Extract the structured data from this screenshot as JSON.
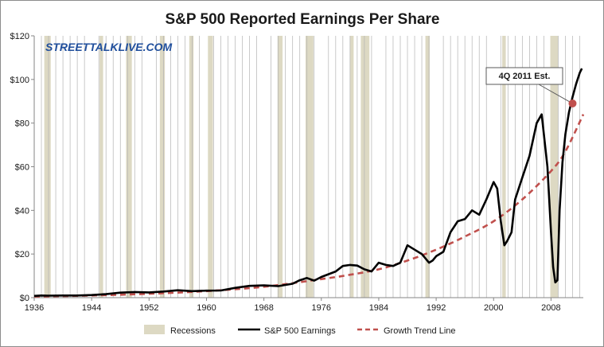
{
  "chart_data": {
    "type": "line",
    "title": "S&P 500 Reported Earnings Per Share",
    "watermark": "STREETTALKLIVE.COM",
    "xlim": [
      1936,
      2012.5
    ],
    "ylim": [
      0,
      120
    ],
    "x_ticks": [
      1936,
      1944,
      1952,
      1960,
      1968,
      1976,
      1984,
      1992,
      2000,
      2008
    ],
    "x_tick_labels": [
      "1936",
      "1944",
      "1952",
      "1960",
      "1968",
      "1976",
      "1984",
      "1992",
      "2000",
      "2008"
    ],
    "y_ticks": [
      0,
      20,
      40,
      60,
      80,
      100,
      120
    ],
    "y_tick_labels": [
      "$0",
      "$20",
      "$40",
      "$60",
      "$80",
      "$100",
      "$120"
    ],
    "grid": "vertical",
    "legend_position": "bottom",
    "recessions": [
      [
        1937.4,
        1938.3
      ],
      [
        1945.1,
        1945.6
      ],
      [
        1948.8,
        1949.6
      ],
      [
        1953.5,
        1954.2
      ],
      [
        1957.6,
        1958.2
      ],
      [
        1960.2,
        1960.9
      ],
      [
        1969.9,
        1970.6
      ],
      [
        1973.8,
        1974.9
      ],
      [
        1980.0,
        1980.5
      ],
      [
        1981.5,
        1982.7
      ],
      [
        1990.5,
        1991.1
      ],
      [
        2001.2,
        2001.7
      ],
      [
        2007.9,
        2009.0
      ]
    ],
    "series": [
      {
        "name": "S&P 500 Earnings",
        "color": "#000000",
        "style": "solid",
        "x": [
          1936,
          1937,
          1938,
          1940,
          1942,
          1944,
          1946,
          1948,
          1950,
          1952,
          1954,
          1956,
          1958,
          1960,
          1962,
          1964,
          1966,
          1968,
          1970,
          1972,
          1973,
          1974,
          1975,
          1976,
          1978,
          1979,
          1980,
          1981,
          1982,
          1983,
          1984,
          1985,
          1986,
          1987,
          1988,
          1989,
          1990,
          1991,
          1991.5,
          1992,
          1993,
          1994,
          1995,
          1996,
          1997,
          1998,
          1999,
          2000,
          2000.5,
          2001,
          2001.5,
          2001.9,
          2002.5,
          2003,
          2004,
          2005,
          2006,
          2006.7,
          2007,
          2007.5,
          2008,
          2008.3,
          2008.6,
          2008.9,
          2009.2,
          2009.6,
          2010,
          2010.5,
          2011,
          2011.5,
          2012,
          2012.3
        ],
        "values": [
          0.8,
          1.0,
          0.9,
          1.0,
          1.0,
          1.2,
          1.6,
          2.3,
          2.6,
          2.4,
          2.8,
          3.4,
          3.0,
          3.2,
          3.3,
          4.5,
          5.4,
          5.6,
          5.3,
          6.4,
          8.0,
          9.0,
          7.8,
          9.5,
          12.0,
          14.5,
          15.0,
          14.7,
          13.0,
          12.0,
          16.0,
          15.0,
          14.5,
          16.0,
          24.0,
          22.0,
          20.0,
          16.0,
          17.0,
          19.0,
          21.0,
          30.0,
          35.0,
          36.0,
          40.0,
          38.0,
          45.0,
          53.0,
          50.0,
          35.0,
          24.0,
          26.0,
          30.0,
          45.0,
          55.0,
          65.0,
          80.0,
          84.0,
          75.0,
          60.0,
          30.0,
          14.0,
          7.0,
          8.0,
          40.0,
          62.0,
          75.0,
          85.0,
          92.0,
          98.0,
          103.0,
          105.0
        ]
      },
      {
        "name": "Growth Trend Line",
        "color": "#c0504d",
        "style": "dashed",
        "x": [
          1936,
          1944,
          1952,
          1960,
          1968,
          1976,
          1980,
          1984,
          1988,
          1992,
          1996,
          2000,
          2004,
          2008,
          2010,
          2012.5
        ],
        "values": [
          0.5,
          1.0,
          1.8,
          3.0,
          5.0,
          8.5,
          10.5,
          13.0,
          17.0,
          22.0,
          28.0,
          35.0,
          45.0,
          58.0,
          67.0,
          84.0
        ]
      }
    ],
    "legend": [
      "Recessions",
      "S&P 500 Earnings",
      "Growth Trend Line"
    ],
    "annotation": {
      "text": "4Q 2011 Est.",
      "x": 2011,
      "y": 89
    },
    "colors": {
      "recession": "#ddd9c3",
      "grid": "#b3b3b3",
      "marker": "#c0504d"
    }
  }
}
